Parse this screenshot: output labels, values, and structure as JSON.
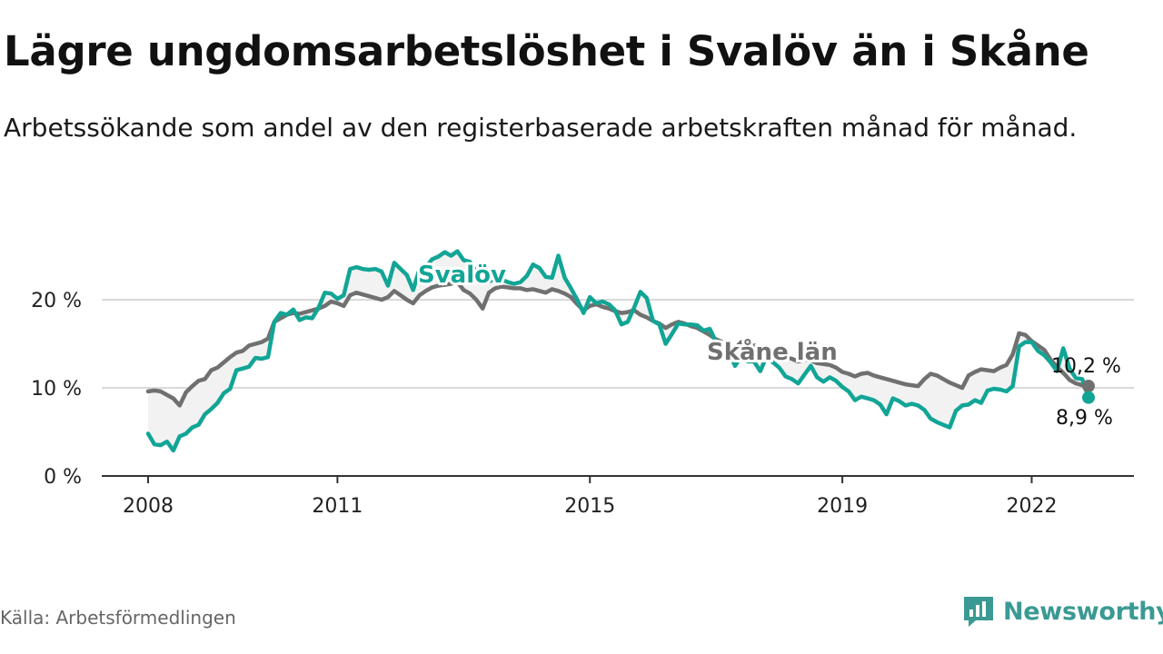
{
  "title": "Lägre ungdomsarbetslöshet i Svalöv än i Skåne",
  "subtitle": "Arbetssökande som andel av den registerbaserade arbetskraften månad för månad.",
  "source": "Källa: Arbetsförmedlingen",
  "brand": "Newsworthy",
  "colors": {
    "svalov": "#12a596",
    "skane": "#707070",
    "brand": "#3a9a93"
  },
  "chart_data": {
    "type": "line",
    "title": "Lägre ungdomsarbetslöshet i Svalöv än i Skåne",
    "xlabel": "",
    "ylabel": "",
    "ylim": [
      0,
      25
    ],
    "xlim": [
      2008.0,
      2022.9
    ],
    "yticks": [
      0,
      10,
      20
    ],
    "ytick_labels": [
      "0 %",
      "10 %",
      "20 %"
    ],
    "xticks": [
      2008,
      2011,
      2015,
      2019,
      2022
    ],
    "xtick_labels": [
      "2008",
      "2011",
      "2015",
      "2019",
      "2022"
    ],
    "grid": true,
    "series": [
      {
        "name": "Svalöv",
        "label": "Svalöv",
        "end_label": "8,9 %",
        "end_value": 8.9,
        "points": [
          [
            2008.0,
            4.8
          ],
          [
            2008.1,
            3.6
          ],
          [
            2008.2,
            3.5
          ],
          [
            2008.3,
            3.9
          ],
          [
            2008.4,
            2.9
          ],
          [
            2008.5,
            4.5
          ],
          [
            2008.6,
            4.8
          ],
          [
            2008.7,
            5.5
          ],
          [
            2008.8,
            5.8
          ],
          [
            2008.9,
            7.0
          ],
          [
            2009.0,
            7.6
          ],
          [
            2009.1,
            8.3
          ],
          [
            2009.2,
            9.4
          ],
          [
            2009.3,
            9.9
          ],
          [
            2009.4,
            12.0
          ],
          [
            2009.5,
            12.2
          ],
          [
            2009.6,
            12.4
          ],
          [
            2009.7,
            13.4
          ],
          [
            2009.8,
            13.3
          ],
          [
            2009.9,
            13.5
          ],
          [
            2010.0,
            17.5
          ],
          [
            2010.1,
            18.5
          ],
          [
            2010.2,
            18.3
          ],
          [
            2010.3,
            18.9
          ],
          [
            2010.4,
            17.7
          ],
          [
            2010.5,
            18.0
          ],
          [
            2010.6,
            17.9
          ],
          [
            2010.7,
            19.1
          ],
          [
            2010.8,
            20.8
          ],
          [
            2010.9,
            20.7
          ],
          [
            2011.0,
            20.1
          ],
          [
            2011.1,
            20.5
          ],
          [
            2011.2,
            23.5
          ],
          [
            2011.3,
            23.7
          ],
          [
            2011.4,
            23.5
          ],
          [
            2011.5,
            23.4
          ],
          [
            2011.6,
            23.5
          ],
          [
            2011.7,
            23.2
          ],
          [
            2011.8,
            21.6
          ],
          [
            2011.9,
            24.2
          ],
          [
            2012.0,
            23.5
          ],
          [
            2012.1,
            22.8
          ],
          [
            2012.2,
            21.1
          ],
          [
            2012.3,
            23.5
          ],
          [
            2012.4,
            23.7
          ],
          [
            2012.5,
            24.6
          ],
          [
            2012.6,
            24.9
          ],
          [
            2012.7,
            25.4
          ],
          [
            2012.8,
            25.0
          ],
          [
            2012.9,
            25.5
          ],
          [
            2013.0,
            24.5
          ],
          [
            2013.1,
            24.3
          ],
          [
            2013.2,
            23.1
          ],
          [
            2013.3,
            21.9
          ],
          [
            2013.4,
            22.1
          ],
          [
            2013.5,
            22.3
          ],
          [
            2013.6,
            22.3
          ],
          [
            2013.7,
            22.0
          ],
          [
            2013.8,
            21.8
          ],
          [
            2013.9,
            22.0
          ],
          [
            2014.0,
            22.7
          ],
          [
            2014.1,
            24.0
          ],
          [
            2014.2,
            23.6
          ],
          [
            2014.3,
            22.6
          ],
          [
            2014.4,
            22.5
          ],
          [
            2014.5,
            25.0
          ],
          [
            2014.6,
            22.5
          ],
          [
            2014.7,
            21.3
          ],
          [
            2014.8,
            20.0
          ],
          [
            2014.9,
            18.5
          ],
          [
            2015.0,
            20.3
          ],
          [
            2015.1,
            19.6
          ],
          [
            2015.2,
            19.8
          ],
          [
            2015.3,
            19.5
          ],
          [
            2015.4,
            18.8
          ],
          [
            2015.5,
            17.2
          ],
          [
            2015.6,
            17.5
          ],
          [
            2015.7,
            19.1
          ],
          [
            2015.8,
            20.9
          ],
          [
            2015.9,
            20.2
          ],
          [
            2016.0,
            17.6
          ],
          [
            2016.1,
            17.2
          ],
          [
            2016.2,
            15.0
          ],
          [
            2016.3,
            16.1
          ],
          [
            2016.4,
            17.3
          ],
          [
            2016.5,
            17.2
          ],
          [
            2016.6,
            17.2
          ],
          [
            2016.7,
            17.1
          ],
          [
            2016.8,
            16.5
          ],
          [
            2016.9,
            16.7
          ],
          [
            2017.0,
            15.2
          ],
          [
            2017.1,
            14.7
          ],
          [
            2017.2,
            14.1
          ],
          [
            2017.3,
            12.5
          ],
          [
            2017.4,
            13.7
          ],
          [
            2017.5,
            13.0
          ],
          [
            2017.6,
            13.0
          ],
          [
            2017.7,
            11.9
          ],
          [
            2017.8,
            13.6
          ],
          [
            2017.9,
            12.9
          ],
          [
            2018.0,
            12.3
          ],
          [
            2018.1,
            11.3
          ],
          [
            2018.2,
            11.0
          ],
          [
            2018.3,
            10.5
          ],
          [
            2018.4,
            11.5
          ],
          [
            2018.5,
            12.5
          ],
          [
            2018.6,
            11.2
          ],
          [
            2018.7,
            10.7
          ],
          [
            2018.8,
            11.2
          ],
          [
            2018.9,
            10.8
          ],
          [
            2019.0,
            10.1
          ],
          [
            2019.1,
            9.6
          ],
          [
            2019.2,
            8.6
          ],
          [
            2019.3,
            9.0
          ],
          [
            2019.4,
            8.8
          ],
          [
            2019.5,
            8.6
          ],
          [
            2019.6,
            8.1
          ],
          [
            2019.7,
            7.0
          ],
          [
            2019.8,
            8.8
          ],
          [
            2019.9,
            8.5
          ],
          [
            2020.0,
            8.0
          ],
          [
            2020.1,
            8.2
          ],
          [
            2020.2,
            8.0
          ],
          [
            2020.3,
            7.5
          ],
          [
            2020.4,
            6.5
          ],
          [
            2020.5,
            6.1
          ],
          [
            2020.6,
            5.8
          ],
          [
            2020.7,
            5.5
          ],
          [
            2020.8,
            7.4
          ],
          [
            2020.9,
            8.0
          ],
          [
            2021.0,
            8.1
          ],
          [
            2021.1,
            8.6
          ],
          [
            2021.2,
            8.3
          ],
          [
            2021.3,
            9.7
          ],
          [
            2021.4,
            9.9
          ],
          [
            2021.5,
            9.8
          ],
          [
            2021.6,
            9.6
          ],
          [
            2021.7,
            10.2
          ],
          [
            2021.8,
            14.7
          ],
          [
            2021.9,
            15.2
          ],
          [
            2022.0,
            15.2
          ],
          [
            2022.1,
            14.2
          ],
          [
            2022.2,
            13.7
          ],
          [
            2022.3,
            12.9
          ],
          [
            2022.4,
            11.9
          ],
          [
            2022.5,
            14.5
          ],
          [
            2022.6,
            12.2
          ],
          [
            2022.7,
            11.1
          ],
          [
            2022.8,
            11.0
          ],
          [
            2022.9,
            8.9
          ]
        ]
      },
      {
        "name": "Skåne län",
        "label": "Skåne län",
        "end_label": "10,2 %",
        "end_value": 10.2,
        "points": [
          [
            2008.0,
            9.6
          ],
          [
            2008.1,
            9.7
          ],
          [
            2008.2,
            9.6
          ],
          [
            2008.3,
            9.2
          ],
          [
            2008.4,
            8.8
          ],
          [
            2008.5,
            8.0
          ],
          [
            2008.6,
            9.5
          ],
          [
            2008.7,
            10.2
          ],
          [
            2008.8,
            10.8
          ],
          [
            2008.9,
            11.0
          ],
          [
            2009.0,
            12.0
          ],
          [
            2009.1,
            12.3
          ],
          [
            2009.2,
            12.9
          ],
          [
            2009.3,
            13.5
          ],
          [
            2009.4,
            14.0
          ],
          [
            2009.5,
            14.2
          ],
          [
            2009.6,
            14.8
          ],
          [
            2009.7,
            15.0
          ],
          [
            2009.8,
            15.2
          ],
          [
            2009.9,
            15.6
          ],
          [
            2010.0,
            17.5
          ],
          [
            2010.1,
            17.9
          ],
          [
            2010.2,
            18.3
          ],
          [
            2010.3,
            18.5
          ],
          [
            2010.4,
            18.4
          ],
          [
            2010.5,
            18.6
          ],
          [
            2010.6,
            18.8
          ],
          [
            2010.7,
            19.0
          ],
          [
            2010.8,
            19.3
          ],
          [
            2010.9,
            19.8
          ],
          [
            2011.0,
            19.6
          ],
          [
            2011.1,
            19.3
          ],
          [
            2011.2,
            20.5
          ],
          [
            2011.3,
            20.8
          ],
          [
            2011.4,
            20.6
          ],
          [
            2011.5,
            20.4
          ],
          [
            2011.6,
            20.2
          ],
          [
            2011.7,
            20.0
          ],
          [
            2011.8,
            20.3
          ],
          [
            2011.9,
            21.0
          ],
          [
            2012.0,
            20.5
          ],
          [
            2012.1,
            20.0
          ],
          [
            2012.2,
            19.6
          ],
          [
            2012.3,
            20.5
          ],
          [
            2012.4,
            21.0
          ],
          [
            2012.5,
            21.4
          ],
          [
            2012.6,
            21.6
          ],
          [
            2012.7,
            21.7
          ],
          [
            2012.8,
            21.8
          ],
          [
            2012.9,
            22.0
          ],
          [
            2013.0,
            21.1
          ],
          [
            2013.1,
            20.7
          ],
          [
            2013.2,
            20.0
          ],
          [
            2013.3,
            19.0
          ],
          [
            2013.4,
            20.8
          ],
          [
            2013.5,
            21.3
          ],
          [
            2013.6,
            21.5
          ],
          [
            2013.7,
            21.4
          ],
          [
            2013.8,
            21.3
          ],
          [
            2013.9,
            21.3
          ],
          [
            2014.0,
            21.1
          ],
          [
            2014.1,
            21.2
          ],
          [
            2014.2,
            21.0
          ],
          [
            2014.3,
            20.8
          ],
          [
            2014.4,
            21.2
          ],
          [
            2014.5,
            21.0
          ],
          [
            2014.6,
            20.7
          ],
          [
            2014.7,
            20.3
          ],
          [
            2014.8,
            19.5
          ],
          [
            2014.9,
            18.8
          ],
          [
            2015.0,
            19.3
          ],
          [
            2015.1,
            19.5
          ],
          [
            2015.2,
            19.2
          ],
          [
            2015.3,
            19.0
          ],
          [
            2015.4,
            18.7
          ],
          [
            2015.5,
            18.5
          ],
          [
            2015.6,
            18.6
          ],
          [
            2015.7,
            18.8
          ],
          [
            2015.8,
            18.3
          ],
          [
            2015.9,
            18.0
          ],
          [
            2016.0,
            17.6
          ],
          [
            2016.1,
            17.3
          ],
          [
            2016.2,
            16.8
          ],
          [
            2016.3,
            17.2
          ],
          [
            2016.4,
            17.5
          ],
          [
            2016.5,
            17.3
          ],
          [
            2016.6,
            17.0
          ],
          [
            2016.7,
            16.8
          ],
          [
            2016.8,
            16.4
          ],
          [
            2016.9,
            16.0
          ],
          [
            2017.0,
            15.5
          ],
          [
            2017.1,
            15.2
          ],
          [
            2017.2,
            14.8
          ],
          [
            2017.3,
            14.5
          ],
          [
            2017.4,
            15.2
          ],
          [
            2017.5,
            15.0
          ],
          [
            2017.6,
            14.8
          ],
          [
            2017.7,
            14.6
          ],
          [
            2017.8,
            14.4
          ],
          [
            2017.9,
            14.2
          ],
          [
            2018.0,
            13.8
          ],
          [
            2018.1,
            13.5
          ],
          [
            2018.2,
            13.3
          ],
          [
            2018.3,
            13.0
          ],
          [
            2018.4,
            13.2
          ],
          [
            2018.5,
            13.1
          ],
          [
            2018.6,
            12.8
          ],
          [
            2018.7,
            12.7
          ],
          [
            2018.8,
            12.6
          ],
          [
            2018.9,
            12.3
          ],
          [
            2019.0,
            11.8
          ],
          [
            2019.1,
            11.6
          ],
          [
            2019.2,
            11.3
          ],
          [
            2019.3,
            11.6
          ],
          [
            2019.4,
            11.7
          ],
          [
            2019.5,
            11.4
          ],
          [
            2019.6,
            11.2
          ],
          [
            2019.7,
            11.0
          ],
          [
            2019.8,
            10.8
          ],
          [
            2019.9,
            10.6
          ],
          [
            2020.0,
            10.4
          ],
          [
            2020.1,
            10.3
          ],
          [
            2020.2,
            10.2
          ],
          [
            2020.3,
            11.0
          ],
          [
            2020.4,
            11.6
          ],
          [
            2020.5,
            11.4
          ],
          [
            2020.6,
            11.0
          ],
          [
            2020.7,
            10.6
          ],
          [
            2020.8,
            10.3
          ],
          [
            2020.9,
            10.0
          ],
          [
            2021.0,
            11.4
          ],
          [
            2021.1,
            11.8
          ],
          [
            2021.2,
            12.1
          ],
          [
            2021.3,
            12.0
          ],
          [
            2021.4,
            11.9
          ],
          [
            2021.5,
            12.3
          ],
          [
            2021.6,
            12.6
          ],
          [
            2021.7,
            13.8
          ],
          [
            2021.8,
            16.2
          ],
          [
            2021.9,
            16.0
          ],
          [
            2022.0,
            15.3
          ],
          [
            2022.1,
            14.8
          ],
          [
            2022.2,
            14.3
          ],
          [
            2022.3,
            13.2
          ],
          [
            2022.4,
            12.4
          ],
          [
            2022.5,
            11.7
          ],
          [
            2022.6,
            10.9
          ],
          [
            2022.7,
            10.5
          ],
          [
            2022.8,
            10.3
          ],
          [
            2022.9,
            10.2
          ]
        ]
      }
    ]
  }
}
